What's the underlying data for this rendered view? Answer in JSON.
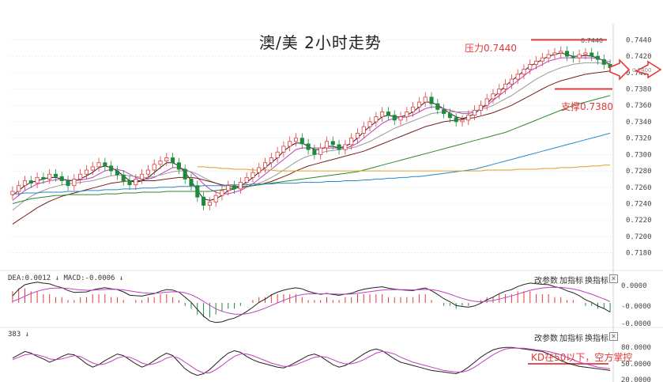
{
  "title": "澳/美 2小时走势",
  "annotations": {
    "resistance": "压力0.7440",
    "support": "支撑0.7380",
    "resistance_small": "0.7440",
    "kd_note": "KD在50以下，空方掌控",
    "price_tag": "0.7400"
  },
  "macd_panel": {
    "label": "DEA:0.0012 ↓  MACD:-0.0006 ↓",
    "buttons": [
      "改参数",
      "加指标",
      "换指标"
    ],
    "close": "✕",
    "ticks": [
      "0.0000",
      "-0.0000",
      "-0.0000"
    ]
  },
  "kd_panel": {
    "label": "383 ↓",
    "buttons": [
      "改参数",
      "加指标",
      "换指标"
    ],
    "close": "✕",
    "ticks": [
      "80.0000",
      "50.0000",
      "20.0000"
    ]
  },
  "colors": {
    "up": "#e03a3a",
    "down": "#1f8a3a",
    "ma_black": "#222222",
    "ma_magenta": "#c040c0",
    "ma_gray": "#9a9a9a",
    "ma_brown": "#7a1e1e",
    "ma_green": "#2a8a2a",
    "ma_blue": "#2a86c8",
    "ma_orange": "#e0a020"
  },
  "chart_data": {
    "type": "candlestick",
    "yticks": [
      "0.7440",
      "0.7420",
      "0.7400",
      "0.7380",
      "0.7360",
      "0.7340",
      "0.7320",
      "0.7300",
      "0.7280",
      "0.7260",
      "0.7240",
      "0.7220",
      "0.7200",
      "0.7180"
    ],
    "ylim": [
      0.717,
      0.745
    ],
    "resistance": 0.744,
    "support": 0.738,
    "closes": [
      0.7255,
      0.7262,
      0.7268,
      0.7265,
      0.7272,
      0.727,
      0.7276,
      0.7273,
      0.7268,
      0.7262,
      0.727,
      0.7276,
      0.7281,
      0.7285,
      0.729,
      0.7286,
      0.728,
      0.7275,
      0.7268,
      0.7263,
      0.727,
      0.7276,
      0.7281,
      0.7288,
      0.7292,
      0.7296,
      0.729,
      0.7282,
      0.727,
      0.7262,
      0.7248,
      0.7238,
      0.7242,
      0.725,
      0.7256,
      0.7262,
      0.7258,
      0.7266,
      0.7272,
      0.7278,
      0.7284,
      0.729,
      0.7296,
      0.7303,
      0.731,
      0.7316,
      0.732,
      0.7313,
      0.7306,
      0.73,
      0.7308,
      0.7316,
      0.7312,
      0.7306,
      0.7312,
      0.732,
      0.7326,
      0.7334,
      0.734,
      0.7346,
      0.7352,
      0.7348,
      0.7342,
      0.7346,
      0.7352,
      0.7358,
      0.7364,
      0.737,
      0.7362,
      0.7355,
      0.735,
      0.7345,
      0.734,
      0.7342,
      0.7348,
      0.7354,
      0.736,
      0.7368,
      0.7374,
      0.738,
      0.7386,
      0.7392,
      0.7398,
      0.7404,
      0.741,
      0.7414,
      0.7418,
      0.7422,
      0.7424,
      0.7426,
      0.742,
      0.7418,
      0.7422,
      0.7424,
      0.742,
      0.7416,
      0.741,
      0.7406
    ],
    "ma": [
      {
        "name": "MA5",
        "color_key": "ma_black",
        "values": [
          0.725,
          0.7256,
          0.7262,
          0.7266,
          0.7268,
          0.727,
          0.7272,
          0.7272,
          0.727,
          0.7268,
          0.7268,
          0.727,
          0.7274,
          0.7278,
          0.7284,
          0.7286,
          0.7284,
          0.728,
          0.7274,
          0.7268,
          0.7266,
          0.7268,
          0.7272,
          0.7278,
          0.7284,
          0.729,
          0.729,
          0.7286,
          0.7278,
          0.7268,
          0.7256,
          0.7246,
          0.7244,
          0.7246,
          0.725,
          0.7256,
          0.7258,
          0.7262,
          0.7266,
          0.7272,
          0.7278,
          0.7284,
          0.729,
          0.7296,
          0.7304,
          0.731,
          0.7314,
          0.7314,
          0.731,
          0.7306,
          0.7306,
          0.731,
          0.731,
          0.7308,
          0.731,
          0.7314,
          0.732,
          0.7328,
          0.7334,
          0.734,
          0.7346,
          0.7348,
          0.7346,
          0.7346,
          0.7348,
          0.7352,
          0.7358,
          0.7364,
          0.7364,
          0.736,
          0.7356,
          0.735,
          0.7346,
          0.7344,
          0.7346,
          0.735,
          0.7356,
          0.7362,
          0.737,
          0.7376,
          0.7384,
          0.739,
          0.7396,
          0.7402,
          0.7408,
          0.7412,
          0.7416,
          0.742,
          0.7422,
          0.7424,
          0.7422,
          0.742,
          0.742,
          0.7421,
          0.742,
          0.7418,
          0.7414,
          0.741
        ]
      },
      {
        "name": "MA10",
        "color_key": "ma_magenta",
        "values": [
          0.7244,
          0.725,
          0.7256,
          0.726,
          0.7264,
          0.7266,
          0.7268,
          0.7269,
          0.727,
          0.7269,
          0.7268,
          0.7269,
          0.727,
          0.7272,
          0.7276,
          0.728,
          0.7282,
          0.7282,
          0.728,
          0.7276,
          0.7272,
          0.727,
          0.727,
          0.7272,
          0.7276,
          0.728,
          0.7284,
          0.7284,
          0.7282,
          0.7278,
          0.7272,
          0.7264,
          0.7258,
          0.7254,
          0.7252,
          0.7252,
          0.7254,
          0.7256,
          0.726,
          0.7264,
          0.727,
          0.7276,
          0.7282,
          0.7288,
          0.7294,
          0.73,
          0.7306,
          0.7308,
          0.7308,
          0.7308,
          0.7308,
          0.7308,
          0.7308,
          0.7308,
          0.7308,
          0.731,
          0.7314,
          0.732,
          0.7326,
          0.7332,
          0.7338,
          0.7342,
          0.7344,
          0.7345,
          0.7346,
          0.7348,
          0.7352,
          0.7356,
          0.7358,
          0.7358,
          0.7356,
          0.7354,
          0.7352,
          0.735,
          0.735,
          0.7352,
          0.7356,
          0.736,
          0.7366,
          0.7372,
          0.7378,
          0.7384,
          0.739,
          0.7396,
          0.7402,
          0.7406,
          0.741,
          0.7414,
          0.7416,
          0.7418,
          0.7418,
          0.7418,
          0.7418,
          0.7418,
          0.7418,
          0.7417,
          0.7415,
          0.7413
        ]
      },
      {
        "name": "MA20",
        "color_key": "ma_gray",
        "values": [
          0.7232,
          0.7238,
          0.7244,
          0.7249,
          0.7253,
          0.7256,
          0.7259,
          0.7261,
          0.7263,
          0.7264,
          0.7265,
          0.7266,
          0.7267,
          0.7268,
          0.727,
          0.7272,
          0.7274,
          0.7275,
          0.7275,
          0.7274,
          0.7273,
          0.7272,
          0.7272,
          0.7273,
          0.7275,
          0.7277,
          0.7279,
          0.728,
          0.728,
          0.7279,
          0.7276,
          0.7272,
          0.7268,
          0.7265,
          0.7262,
          0.726,
          0.7259,
          0.7259,
          0.726,
          0.7262,
          0.7265,
          0.7268,
          0.7272,
          0.7276,
          0.7281,
          0.7286,
          0.7291,
          0.7295,
          0.7298,
          0.73,
          0.7302,
          0.7304,
          0.7305,
          0.7306,
          0.7307,
          0.7308,
          0.731,
          0.7313,
          0.7316,
          0.732,
          0.7324,
          0.7328,
          0.7332,
          0.7335,
          0.7338,
          0.7341,
          0.7344,
          0.7347,
          0.735,
          0.7351,
          0.7352,
          0.7352,
          0.7352,
          0.7352,
          0.7352,
          0.7353,
          0.7355,
          0.7357,
          0.736,
          0.7364,
          0.7368,
          0.7372,
          0.7377,
          0.7382,
          0.7387,
          0.7392,
          0.7396,
          0.74,
          0.7403,
          0.7406,
          0.7408,
          0.741,
          0.7411,
          0.7412,
          0.7412,
          0.7412,
          0.7411,
          0.741
        ]
      },
      {
        "name": "MA30",
        "color_key": "ma_brown",
        "values": [
          0.7215,
          0.722,
          0.7225,
          0.723,
          0.7235,
          0.7239,
          0.7243,
          0.7246,
          0.7249,
          0.7251,
          0.7253,
          0.7255,
          0.7257,
          0.7259,
          0.7261,
          0.7263,
          0.7265,
          0.7266,
          0.7267,
          0.7268,
          0.7268,
          0.7268,
          0.7268,
          0.7268,
          0.7269,
          0.727,
          0.7271,
          0.7272,
          0.7272,
          0.7272,
          0.7271,
          0.7269,
          0.7267,
          0.7265,
          0.7263,
          0.7262,
          0.7261,
          0.7261,
          0.7261,
          0.7262,
          0.7263,
          0.7265,
          0.7267,
          0.727,
          0.7273,
          0.7276,
          0.728,
          0.7283,
          0.7286,
          0.7288,
          0.729,
          0.7292,
          0.7294,
          0.7296,
          0.7298,
          0.73,
          0.7302,
          0.7304,
          0.7307,
          0.731,
          0.7313,
          0.7316,
          0.7319,
          0.7322,
          0.7325,
          0.7328,
          0.7331,
          0.7334,
          0.7336,
          0.7338,
          0.734,
          0.7341,
          0.7342,
          0.7343,
          0.7344,
          0.7345,
          0.7347,
          0.7349,
          0.7351,
          0.7354,
          0.7357,
          0.736,
          0.7364,
          0.7368,
          0.7372,
          0.7376,
          0.738,
          0.7384,
          0.7387,
          0.739,
          0.7392,
          0.7394,
          0.7396,
          0.7398,
          0.7399,
          0.74,
          0.7401,
          0.7402
        ]
      },
      {
        "name": "MA60",
        "color_key": "ma_green",
        "values": [
          0.724,
          0.7242,
          0.7244,
          0.7246,
          0.7247,
          0.7248,
          0.7249,
          0.725,
          0.725,
          0.7251,
          0.7251,
          0.7251,
          0.7251,
          0.7251,
          0.7251,
          0.7252,
          0.7252,
          0.7252,
          0.7253,
          0.7253,
          0.7253,
          0.7254,
          0.7254,
          0.7254,
          0.7254,
          0.7255,
          0.7255,
          0.7255,
          0.7255,
          0.7255,
          0.7255,
          0.7255,
          0.7255,
          0.7256,
          0.7257,
          0.7258,
          0.7259,
          0.726,
          0.7261,
          0.7262,
          0.7263,
          0.7264,
          0.7265,
          0.7266,
          0.7267,
          0.7268,
          0.7269,
          0.727,
          0.7271,
          0.7272,
          0.7273,
          0.7274,
          0.7275,
          0.7276,
          0.7277,
          0.7278,
          0.7279,
          0.7281,
          0.7283,
          0.7285,
          0.7287,
          0.7289,
          0.7291,
          0.7293,
          0.7295,
          0.7297,
          0.7299,
          0.7301,
          0.7303,
          0.7305,
          0.7307,
          0.7309,
          0.7311,
          0.7313,
          0.7315,
          0.7317,
          0.7319,
          0.7321,
          0.7323,
          0.7325,
          0.7327,
          0.733,
          0.7333,
          0.7336,
          0.7339,
          0.7342,
          0.7345,
          0.7348,
          0.7351,
          0.7354,
          0.7357,
          0.736,
          0.7362,
          0.7364,
          0.7366,
          0.7368,
          0.737,
          0.7372
        ]
      },
      {
        "name": "MA120",
        "color_key": "ma_blue",
        "values": [
          0.7252,
          0.7252,
          0.7253,
          0.7253,
          0.7253,
          0.7254,
          0.7254,
          0.7254,
          0.7254,
          0.7255,
          0.7255,
          0.7255,
          0.7256,
          0.7256,
          0.7256,
          0.7257,
          0.7257,
          0.7257,
          0.7258,
          0.7258,
          0.7258,
          0.7259,
          0.7259,
          0.7259,
          0.726,
          0.726,
          0.726,
          0.7261,
          0.7261,
          0.7261,
          0.7261,
          0.7262,
          0.7262,
          0.7262,
          0.7262,
          0.7263,
          0.7263,
          0.7263,
          0.7263,
          0.7264,
          0.7264,
          0.7264,
          0.7264,
          0.7265,
          0.7265,
          0.7265,
          0.7265,
          0.7266,
          0.7266,
          0.7266,
          0.7266,
          0.7267,
          0.7267,
          0.7267,
          0.7268,
          0.7268,
          0.7268,
          0.7269,
          0.7269,
          0.727,
          0.727,
          0.7271,
          0.7271,
          0.7272,
          0.7272,
          0.7273,
          0.7273,
          0.7274,
          0.7275,
          0.7276,
          0.7277,
          0.7278,
          0.7279,
          0.728,
          0.7281,
          0.7282,
          0.7284,
          0.7286,
          0.7288,
          0.729,
          0.7292,
          0.7294,
          0.7296,
          0.7298,
          0.73,
          0.7302,
          0.7304,
          0.7306,
          0.7308,
          0.731,
          0.7312,
          0.7314,
          0.7316,
          0.7318,
          0.732,
          0.7322,
          0.7324,
          0.7326
        ]
      },
      {
        "name": "MA250",
        "color_key": "ma_orange",
        "start_index": 30,
        "values": [
          0.7285,
          0.7285,
          0.7284,
          0.7284,
          0.7283,
          0.7283,
          0.7282,
          0.7282,
          0.7282,
          0.7281,
          0.7281,
          0.7281,
          0.7281,
          0.728,
          0.728,
          0.728,
          0.728,
          0.728,
          0.728,
          0.728,
          0.728,
          0.728,
          0.728,
          0.728,
          0.728,
          0.728,
          0.728,
          0.728,
          0.728,
          0.728,
          0.728,
          0.728,
          0.728,
          0.728,
          0.728,
          0.728,
          0.728,
          0.728,
          0.728,
          0.728,
          0.728,
          0.728,
          0.728,
          0.728,
          0.728,
          0.728,
          0.728,
          0.7281,
          0.7281,
          0.7281,
          0.7281,
          0.7281,
          0.7282,
          0.7282,
          0.7282,
          0.7282,
          0.7283,
          0.7283,
          0.7283,
          0.7284,
          0.7284,
          0.7284,
          0.7285,
          0.7285,
          0.7286,
          0.7286,
          0.7287,
          0.7287
        ]
      }
    ],
    "macd_hist": [
      0.0004,
      0.0005,
      0.0005,
      0.0004,
      0.0004,
      0.0003,
      0.0003,
      0.0002,
      0.0002,
      0.0001,
      0.0001,
      0.0002,
      0.0002,
      0.0003,
      0.0003,
      0.0003,
      0.0002,
      0.0002,
      0.0001,
      0.0,
      0.0001,
      0.0001,
      0.0002,
      0.0002,
      0.0003,
      0.0003,
      0.0002,
      0.0001,
      -0.0001,
      -0.0002,
      -0.0004,
      -0.0005,
      -0.0005,
      -0.0004,
      -0.0003,
      -0.0002,
      -0.0002,
      -0.0001,
      0.0,
      0.0001,
      0.0002,
      0.0002,
      0.0003,
      0.0003,
      0.0003,
      0.0003,
      0.0003,
      0.0002,
      0.0001,
      0.0001,
      0.0001,
      0.0002,
      0.0001,
      0.0001,
      0.0002,
      0.0002,
      0.0003,
      0.0003,
      0.0003,
      0.0003,
      0.0003,
      0.0002,
      0.0002,
      0.0002,
      0.0002,
      0.0002,
      0.0003,
      0.0003,
      0.0001,
      0.0,
      -0.0001,
      -0.0001,
      -0.0002,
      -0.0001,
      -0.0001,
      0.0,
      0.0001,
      0.0002,
      0.0002,
      0.0003,
      0.0003,
      0.0003,
      0.0004,
      0.0004,
      0.0004,
      0.0003,
      0.0003,
      0.0003,
      0.0002,
      0.0002,
      0.0001,
      0.0001,
      0.0,
      -0.0001,
      -0.0001,
      -0.0002,
      -0.0002,
      -0.0003
    ],
    "kd_k": [
      62,
      70,
      78,
      74,
      66,
      60,
      52,
      58,
      66,
      72,
      70,
      60,
      48,
      40,
      46,
      56,
      64,
      72,
      68,
      58,
      48,
      40,
      46,
      56,
      66,
      74,
      68,
      52,
      36,
      26,
      20,
      24,
      34,
      48,
      62,
      74,
      80,
      76,
      66,
      58,
      52,
      48,
      44,
      40,
      38,
      44,
      52,
      60,
      68,
      72,
      66,
      56,
      46,
      40,
      44,
      52,
      62,
      72,
      80,
      84,
      80,
      70,
      60,
      52,
      48,
      44,
      40,
      36,
      32,
      30,
      28,
      26,
      24,
      30,
      40,
      52,
      64,
      74,
      82,
      86,
      88,
      88,
      86,
      84,
      82,
      80,
      78,
      72,
      64,
      56,
      50,
      46,
      42,
      40,
      38,
      36,
      34,
      32
    ],
    "kd_d": [
      58,
      64,
      70,
      72,
      70,
      66,
      60,
      58,
      60,
      64,
      68,
      66,
      58,
      50,
      46,
      48,
      54,
      62,
      66,
      64,
      58,
      50,
      46,
      48,
      54,
      62,
      66,
      62,
      52,
      42,
      32,
      26,
      26,
      34,
      44,
      56,
      66,
      72,
      72,
      68,
      62,
      56,
      50,
      46,
      42,
      42,
      46,
      52,
      58,
      64,
      66,
      64,
      58,
      52,
      48,
      48,
      52,
      58,
      66,
      74,
      78,
      76,
      72,
      64,
      58,
      52,
      48,
      44,
      40,
      36,
      32,
      30,
      28,
      28,
      32,
      40,
      50,
      60,
      70,
      78,
      84,
      86,
      86,
      86,
      84,
      82,
      80,
      78,
      74,
      70,
      64,
      58,
      52,
      48,
      44,
      40,
      38,
      36
    ]
  }
}
